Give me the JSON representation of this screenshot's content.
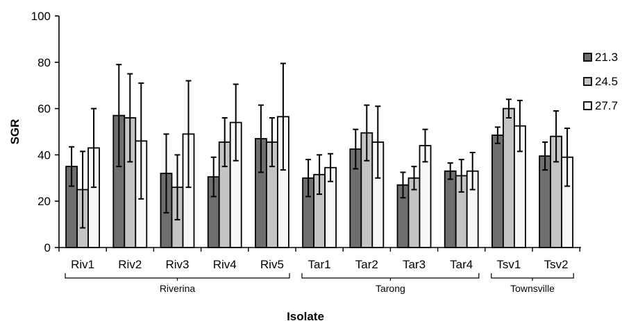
{
  "chart_data": {
    "type": "bar",
    "title": "",
    "xlabel": "Isolate",
    "ylabel": "SGR",
    "ylim": [
      0,
      100
    ],
    "yticks": [
      0,
      20,
      40,
      60,
      80,
      100
    ],
    "grid": false,
    "legend_position": "right",
    "categories": [
      "Riv1",
      "Riv2",
      "Riv3",
      "Riv4",
      "Riv5",
      "Tar1",
      "Tar2",
      "Tar3",
      "Tar4",
      "Tsv1",
      "Tsv2"
    ],
    "groups": [
      {
        "label": "Riverina",
        "categories": [
          "Riv1",
          "Riv2",
          "Riv3",
          "Riv4",
          "Riv5"
        ]
      },
      {
        "label": "Tarong",
        "categories": [
          "Tar1",
          "Tar2",
          "Tar3",
          "Tar4"
        ]
      },
      {
        "label": "Townsville",
        "categories": [
          "Tsv1",
          "Tsv2"
        ]
      }
    ],
    "series": [
      {
        "name": "21.3",
        "color": "#6e6e6e",
        "values": [
          35,
          57,
          32,
          30.5,
          47,
          30,
          42.5,
          27,
          33,
          48.5,
          39.5
        ],
        "errors": [
          8.5,
          22,
          17,
          8.5,
          14.5,
          8,
          8.5,
          5.5,
          3.5,
          3.5,
          6
        ]
      },
      {
        "name": "24.5",
        "color": "#c4c4c4",
        "values": [
          25,
          56,
          26,
          45.5,
          45.5,
          31.5,
          49.5,
          30,
          31,
          60,
          48
        ],
        "errors": [
          16.5,
          19,
          14,
          10.5,
          10.5,
          8.5,
          12,
          5,
          7,
          4,
          11
        ]
      },
      {
        "name": "27.7",
        "color": "#f7f7f7",
        "values": [
          43,
          46,
          49,
          54,
          56.5,
          34.5,
          45.5,
          44,
          33,
          52.5,
          39
        ],
        "errors": [
          17,
          25,
          23,
          16.5,
          23,
          6,
          15.5,
          7,
          8,
          11,
          12.5
        ]
      }
    ]
  }
}
